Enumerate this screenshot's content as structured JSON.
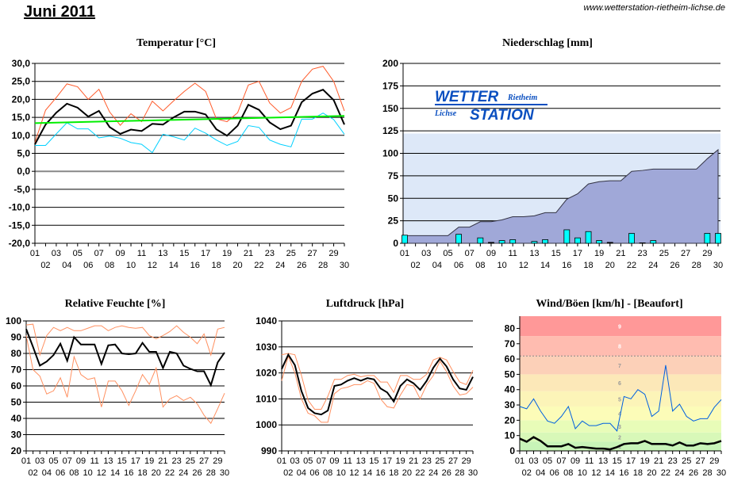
{
  "header": {
    "month": "Juni 2011",
    "url": "www.wetterstation-rietheim-lichse.de"
  },
  "colors": {
    "max": "#ff5a2a",
    "mean": "#000000",
    "min": "#00d0ff",
    "trend": "#00ee00",
    "precip_bar": "#00ffff",
    "precip_cum": "#a0a8d8",
    "precip_ref": "#dde8f8",
    "hum_range": "#ff9060",
    "gust": "#0060e0"
  },
  "logo": {
    "line1": "WETTER",
    "line1b": "Rietheim",
    "line2a": "Lichse",
    "line2": "STATION"
  },
  "days": [
    "01",
    "02",
    "03",
    "04",
    "05",
    "06",
    "07",
    "08",
    "09",
    "10",
    "11",
    "12",
    "13",
    "14",
    "15",
    "16",
    "17",
    "18",
    "19",
    "20",
    "21",
    "22",
    "23",
    "24",
    "25",
    "26",
    "27",
    "28",
    "29",
    "30"
  ],
  "chart_data": [
    {
      "type": "line",
      "title": "Temperatur [°C]",
      "ylim": [
        -20,
        30
      ],
      "yticks": [
        "30,0",
        "25,0",
        "20,0",
        "15,0",
        "10,0",
        "5,0",
        "0,0",
        "-5,0",
        "-10,0",
        "-15,0",
        "-20,0"
      ],
      "series": [
        {
          "role": "max",
          "values": [
            8,
            17,
            20.5,
            24.3,
            23.5,
            20,
            22.8,
            16.5,
            12.8,
            16,
            13.8,
            19.5,
            16.8,
            19.6,
            22.2,
            24.5,
            22.2,
            14.6,
            13.8,
            16.3,
            24,
            25,
            19,
            16.2,
            17.7,
            25,
            28.4,
            29.2,
            25,
            16.8
          ]
        },
        {
          "role": "mean",
          "values": [
            7.5,
            13,
            16.3,
            18.8,
            17.7,
            15.2,
            16.8,
            12.3,
            10.4,
            11.6,
            11.2,
            13.2,
            13,
            15,
            16.6,
            16.6,
            15.8,
            11.7,
            9.9,
            12.7,
            18.5,
            17.1,
            13.6,
            11.7,
            12.7,
            19.2,
            21.6,
            22.7,
            19.8,
            13
          ]
        },
        {
          "role": "min",
          "values": [
            7.2,
            7.2,
            10.4,
            13.5,
            11.8,
            11.8,
            9.3,
            9.8,
            9.2,
            8,
            7.5,
            5.2,
            10.3,
            9.6,
            8.7,
            12,
            10.6,
            8.7,
            7.2,
            8.3,
            12.7,
            12.2,
            8.7,
            7.5,
            6.8,
            14.5,
            14.5,
            16.2,
            14.4,
            10.3
          ]
        },
        {
          "role": "trend",
          "values": [
            13.4,
            15.4
          ]
        }
      ]
    },
    {
      "type": "bar+area",
      "title": "Niederschlag [mm]",
      "ylim": [
        0,
        200
      ],
      "yticks": [
        "200",
        "175",
        "150",
        "125",
        "100",
        "75",
        "50",
        "25",
        "0"
      ],
      "reference": 122,
      "daily": [
        9,
        0,
        0,
        0,
        0,
        10,
        0,
        6,
        1,
        3,
        4,
        0,
        2,
        4,
        0,
        15,
        6,
        13,
        3,
        1,
        0,
        11,
        0.5,
        3,
        0,
        0,
        0,
        0,
        11,
        11
      ],
      "cumulative": [
        8.5,
        8.5,
        8.5,
        8.5,
        8.5,
        18,
        18,
        24,
        24,
        26,
        29.5,
        29.5,
        30.5,
        34,
        34,
        49,
        55,
        66,
        68.5,
        69.5,
        69.5,
        80,
        81,
        82.5,
        82.5,
        82.5,
        82.5,
        82.5,
        94,
        104
      ]
    },
    {
      "type": "line",
      "title": "Relative Feuchte [%]",
      "ylim": [
        20,
        100
      ],
      "yticks": [
        "100",
        "90",
        "80",
        "70",
        "60",
        "50",
        "40",
        "30",
        "20"
      ],
      "series": [
        {
          "role": "max",
          "values": [
            97.5,
            98,
            79,
            91,
            96,
            94,
            96,
            94,
            94,
            95.5,
            97,
            97,
            94,
            96,
            97,
            96,
            95.5,
            96,
            91,
            89,
            91,
            93.5,
            97,
            93,
            90,
            86,
            92,
            79,
            95,
            96
          ]
        },
        {
          "role": "mean",
          "values": [
            95,
            84,
            72.5,
            75,
            79,
            86,
            75.5,
            90,
            85.5,
            85.5,
            85.5,
            73.5,
            85,
            85.5,
            80,
            79.5,
            80,
            86.5,
            81,
            81,
            71,
            81,
            80,
            72.5,
            70.5,
            69,
            69,
            60.5,
            74.5,
            80.5
          ]
        },
        {
          "role": "min",
          "values": [
            91,
            70,
            66,
            55,
            57,
            65,
            53,
            78,
            67,
            64,
            65,
            47,
            63,
            63,
            57,
            48,
            57,
            67,
            61,
            71,
            47,
            52,
            54,
            51,
            53,
            49,
            42,
            37,
            46,
            55.5
          ]
        }
      ]
    },
    {
      "type": "line",
      "title": "Luftdruck [hPa]",
      "ylim": [
        990,
        1040
      ],
      "yticks": [
        "1040",
        "1030",
        "1020",
        "1010",
        "1000",
        "990"
      ],
      "series": [
        {
          "role": "max",
          "values": [
            1027,
            1027.5,
            1027,
            1019,
            1009.5,
            1006,
            1006,
            1011,
            1017.5,
            1017.5,
            1019,
            1019.5,
            1018.5,
            1019,
            1019,
            1016.5,
            1016.5,
            1012.5,
            1019,
            1019,
            1017.5,
            1017.5,
            1019.5,
            1025,
            1026,
            1025,
            1020.5,
            1016.5,
            1015.5,
            1021
          ]
        },
        {
          "role": "min",
          "values": [
            1017,
            1026.5,
            1020,
            1010,
            1004.5,
            1003.5,
            1001,
            1001,
            1012,
            1014,
            1014.5,
            1015.5,
            1015.5,
            1017,
            1016,
            1010,
            1007,
            1006.5,
            1011.5,
            1015.5,
            1015,
            1010,
            1015.5,
            1019,
            1024.5,
            1020.5,
            1015,
            1011.5,
            1012,
            1014.5
          ]
        },
        {
          "role": "mean",
          "values": [
            1021.5,
            1027,
            1023,
            1013,
            1006.5,
            1004.5,
            1004,
            1005.5,
            1015,
            1015.5,
            1017,
            1018,
            1017,
            1018,
            1017.5,
            1014,
            1012.5,
            1009,
            1015,
            1017.5,
            1016,
            1013.5,
            1017,
            1022,
            1025.5,
            1022.5,
            1017.5,
            1014,
            1013.5,
            1018.5
          ]
        }
      ]
    },
    {
      "type": "line",
      "title": "Wind/Böen [km/h] - [Beaufort]",
      "ylim": [
        0,
        88
      ],
      "yticks": [
        "80",
        "70",
        "60",
        "50",
        "40",
        "30",
        "20",
        "10",
        "0"
      ],
      "beaufort": {
        "labels": [
          "1",
          "2",
          "3",
          "4",
          "5",
          "6",
          "7",
          "8",
          "9"
        ],
        "bounds": [
          0,
          6,
          12,
          20,
          29,
          39,
          50,
          62,
          75,
          88
        ],
        "colors": [
          "#c8f4b8",
          "#d8f8b8",
          "#e8fcb8",
          "#fcfcb8",
          "#fcf4b8",
          "#fce8b8",
          "#fcd0b8",
          "#ffbcb0",
          "#ff9898"
        ]
      },
      "series": [
        {
          "role": "gust",
          "values": [
            29,
            27.5,
            34,
            26,
            19.5,
            18,
            22.5,
            29,
            14.5,
            19.5,
            16.5,
            16.5,
            18,
            18,
            13,
            35.5,
            34,
            40,
            37,
            22.5,
            26,
            56,
            26,
            30.5,
            22.5,
            19.5,
            21,
            21,
            28.5,
            33.5
          ]
        },
        {
          "role": "mean",
          "values": [
            8,
            6,
            9,
            6.5,
            3,
            3,
            3,
            4.5,
            2,
            2.5,
            2,
            1.5,
            1.5,
            1,
            2.5,
            4.5,
            5,
            5,
            6.5,
            4.5,
            4.5,
            4.5,
            3.5,
            5.5,
            3.5,
            3.5,
            5,
            4.5,
            5,
            6.5
          ]
        }
      ]
    }
  ]
}
